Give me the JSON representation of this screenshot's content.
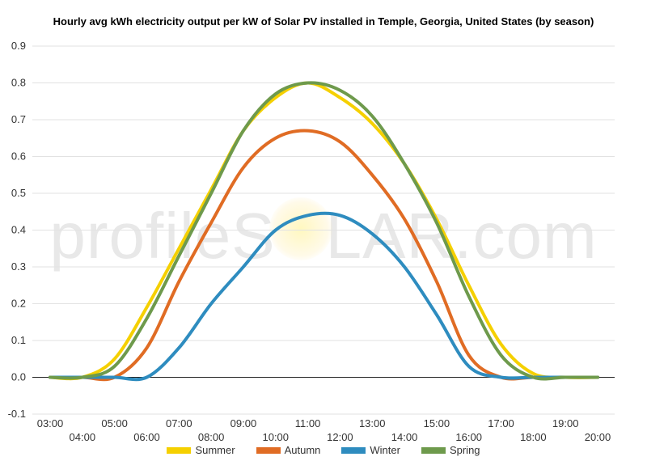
{
  "watermark": {
    "prefix": "profileS",
    "suffix": "LAR.com"
  },
  "chart_data": {
    "type": "line",
    "title": "Hourly avg kWh electricity output per kW of Solar PV installed in Temple, Georgia, United States (by season)",
    "xlabel": "",
    "ylabel": "",
    "ylim": [
      -0.1,
      0.9
    ],
    "yticks": [
      "-0.1",
      "0.0",
      "0.1",
      "0.2",
      "0.3",
      "0.4",
      "0.5",
      "0.6",
      "0.7",
      "0.8",
      "0.9"
    ],
    "x_upper_ticks": [
      "03:00",
      "05:00",
      "07:00",
      "09:00",
      "11:00",
      "13:00",
      "15:00",
      "17:00",
      "19:00"
    ],
    "x_lower_ticks": [
      "04:00",
      "06:00",
      "08:00",
      "10:00",
      "12:00",
      "14:00",
      "16:00",
      "18:00",
      "20:00"
    ],
    "x": [
      "03:00",
      "04:00",
      "05:00",
      "06:00",
      "07:00",
      "08:00",
      "09:00",
      "10:00",
      "11:00",
      "12:00",
      "13:00",
      "14:00",
      "15:00",
      "16:00",
      "17:00",
      "18:00",
      "19:00",
      "20:00"
    ],
    "grid": true,
    "legend": "bottom",
    "series": [
      {
        "name": "Summer",
        "color": "#f5d000",
        "values": [
          0.0,
          0.0,
          0.05,
          0.19,
          0.35,
          0.51,
          0.67,
          0.76,
          0.8,
          0.76,
          0.69,
          0.58,
          0.43,
          0.25,
          0.09,
          0.01,
          0.0,
          0.0
        ]
      },
      {
        "name": "Autumn",
        "color": "#e06c24",
        "values": [
          0.0,
          0.0,
          0.0,
          0.08,
          0.26,
          0.42,
          0.57,
          0.65,
          0.67,
          0.64,
          0.55,
          0.43,
          0.26,
          0.06,
          0.0,
          0.0,
          0.0,
          0.0
        ]
      },
      {
        "name": "Winter",
        "color": "#2e8cbf",
        "values": [
          0.0,
          0.0,
          0.0,
          0.0,
          0.08,
          0.2,
          0.3,
          0.4,
          0.44,
          0.44,
          0.39,
          0.3,
          0.17,
          0.03,
          0.0,
          0.0,
          0.0,
          0.0
        ]
      },
      {
        "name": "Spring",
        "color": "#6e9a4c",
        "values": [
          0.0,
          0.0,
          0.03,
          0.16,
          0.33,
          0.5,
          0.67,
          0.77,
          0.8,
          0.78,
          0.71,
          0.58,
          0.42,
          0.22,
          0.06,
          0.0,
          0.0,
          0.0
        ]
      }
    ]
  }
}
